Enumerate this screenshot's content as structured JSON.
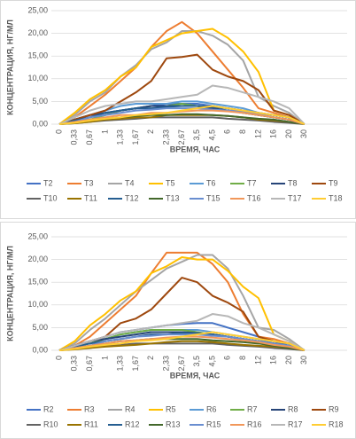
{
  "chart_data": [
    {
      "type": "line",
      "y_label": "КОНЦЕНТРАЦИЯ, НГ/МЛ",
      "x_label": "ВРЕМЯ, ЧАС",
      "categories": [
        "0",
        "0,33",
        "0,67",
        "1",
        "1,33",
        "1,67",
        "2",
        "2,33",
        "2,67",
        "3,5",
        "4,5",
        "6",
        "8",
        "12",
        "16",
        "20",
        "30"
      ],
      "ylim": [
        0,
        25
      ],
      "yticks": [
        {
          "value": 0,
          "label": "0,00"
        },
        {
          "value": 5,
          "label": "5,00"
        },
        {
          "value": 10,
          "label": "10,00"
        },
        {
          "value": 15,
          "label": "15,00"
        },
        {
          "value": 20,
          "label": "20,00"
        },
        {
          "value": 25,
          "label": "25,00"
        }
      ],
      "grid": true,
      "series": [
        {
          "name": "T2",
          "color": "#4472C4",
          "values": [
            0,
            0.5,
            1.5,
            2.5,
            3,
            3.5,
            4,
            4.5,
            4.5,
            4.5,
            4,
            3.5,
            3,
            2,
            1.5,
            1,
            0
          ]
        },
        {
          "name": "T3",
          "color": "#ED7D31",
          "values": [
            0,
            1.5,
            4,
            6.5,
            9.5,
            12.5,
            17,
            20.5,
            22.5,
            20,
            16,
            12,
            8,
            3.5,
            2.5,
            1.5,
            0
          ]
        },
        {
          "name": "T4",
          "color": "#A5A5A5",
          "values": [
            0,
            2,
            5,
            7,
            10.5,
            13,
            16.5,
            18,
            20.5,
            20.5,
            19.5,
            17.5,
            14,
            6,
            4,
            2.5,
            0
          ]
        },
        {
          "name": "T5",
          "color": "#FFC000",
          "values": [
            0,
            2.5,
            5.5,
            7.5,
            10.5,
            12.5,
            17,
            18.5,
            20,
            20.5,
            21,
            19,
            16,
            11.5,
            3,
            2,
            0
          ]
        },
        {
          "name": "T6",
          "color": "#5B9BD5",
          "values": [
            0,
            1,
            2,
            3,
            4,
            4.5,
            4.5,
            4.5,
            5,
            5,
            4.5,
            4,
            3.5,
            2.5,
            2,
            1.5,
            0
          ]
        },
        {
          "name": "T7",
          "color": "#70AD47",
          "values": [
            0,
            0.5,
            1,
            2,
            3,
            3.5,
            4,
            4,
            4.5,
            4,
            3.5,
            3,
            2.5,
            2,
            1.5,
            1,
            0
          ]
        },
        {
          "name": "T8",
          "color": "#264478",
          "values": [
            0,
            1,
            2,
            2.5,
            3,
            3.5,
            4,
            4,
            4,
            4,
            3.5,
            3,
            2.5,
            2,
            1.5,
            1,
            0
          ]
        },
        {
          "name": "T9",
          "color": "#9E480E",
          "values": [
            0,
            1,
            2,
            3,
            5,
            7,
            9.5,
            14.5,
            14.8,
            15.3,
            12,
            10.5,
            9.5,
            7.5,
            3,
            2,
            0
          ]
        },
        {
          "name": "T10",
          "color": "#636363",
          "values": [
            0,
            0.2,
            0.5,
            0.8,
            1,
            1.2,
            1.5,
            1.5,
            1.5,
            1.5,
            1.5,
            1.2,
            1,
            0.8,
            0.5,
            0.3,
            0
          ]
        },
        {
          "name": "T11",
          "color": "#997300",
          "values": [
            0,
            0.2,
            0.5,
            1,
            1.2,
            1.5,
            1.5,
            2,
            2,
            2,
            2,
            1.8,
            1.5,
            1,
            0.8,
            0.5,
            0
          ]
        },
        {
          "name": "T12",
          "color": "#255E91",
          "values": [
            0,
            0.8,
            1.5,
            2.5,
            3,
            3.5,
            3.5,
            3.8,
            4,
            4,
            3.8,
            3.5,
            3,
            2.5,
            2,
            1.5,
            0
          ]
        },
        {
          "name": "T13",
          "color": "#43682B",
          "values": [
            0,
            0.3,
            0.8,
            1.2,
            1.5,
            1.8,
            2,
            2,
            2.2,
            2.2,
            2,
            1.8,
            1.5,
            1.2,
            1,
            0.5,
            0
          ]
        },
        {
          "name": "T15",
          "color": "#698ED0",
          "values": [
            0,
            0.5,
            1.5,
            2,
            2.5,
            3,
            3.2,
            3.5,
            3.5,
            3.5,
            3.2,
            3,
            2.8,
            2.2,
            1.5,
            1,
            0
          ]
        },
        {
          "name": "T16",
          "color": "#F1975A",
          "values": [
            0,
            0.5,
            1,
            1.5,
            2,
            2,
            2.5,
            2.5,
            2.8,
            3,
            3,
            2.8,
            2.5,
            2,
            1.5,
            1,
            0
          ]
        },
        {
          "name": "T17",
          "color": "#B7B7B7",
          "values": [
            0,
            1.5,
            3,
            4,
            4.5,
            5,
            5,
            5.5,
            6,
            6.5,
            8.5,
            8,
            7,
            6,
            5,
            3.5,
            0
          ]
        },
        {
          "name": "T18",
          "color": "#FFCD33",
          "values": [
            0,
            0.3,
            0.8,
            1.2,
            1.5,
            2,
            2.2,
            2.5,
            3,
            3.5,
            4,
            3.5,
            3,
            2.5,
            2,
            1.5,
            0
          ]
        }
      ]
    },
    {
      "type": "line",
      "y_label": "КОНЦЕНТРАЦИЯ, НГ/МЛ",
      "x_label": "ВРЕМЯ, ЧАС",
      "categories": [
        "0",
        "0,33",
        "0,67",
        "1",
        "1,33",
        "1,67",
        "2",
        "2,33",
        "2,67",
        "3,5",
        "4,5",
        "6",
        "8",
        "12",
        "16",
        "20",
        "30"
      ],
      "ylim": [
        0,
        25
      ],
      "yticks": [
        {
          "value": 0,
          "label": "0,00"
        },
        {
          "value": 5,
          "label": "5,00"
        },
        {
          "value": 10,
          "label": "10,00"
        },
        {
          "value": 15,
          "label": "15,00"
        },
        {
          "value": 20,
          "label": "20,00"
        },
        {
          "value": 25,
          "label": "25,00"
        }
      ],
      "grid": true,
      "series": [
        {
          "name": "R2",
          "color": "#4472C4",
          "values": [
            0,
            1,
            2,
            3,
            4,
            4.5,
            5,
            5.5,
            5.8,
            6,
            6,
            5,
            4,
            3,
            2,
            1,
            0
          ]
        },
        {
          "name": "R3",
          "color": "#ED7D31",
          "values": [
            0,
            1,
            3,
            6,
            9,
            12,
            17,
            21.5,
            21.5,
            21.5,
            19,
            15,
            8,
            3,
            2.5,
            1.5,
            0
          ]
        },
        {
          "name": "R4",
          "color": "#A5A5A5",
          "values": [
            0,
            1.5,
            4.5,
            7,
            10,
            13,
            15.5,
            18,
            19.5,
            21,
            21,
            18,
            12,
            5,
            4.5,
            2.5,
            0
          ]
        },
        {
          "name": "R5",
          "color": "#FFC000",
          "values": [
            0,
            2,
            5.5,
            8,
            11,
            13,
            17,
            18.5,
            20.5,
            20,
            20,
            17.5,
            14,
            11.5,
            3.5,
            2,
            0
          ]
        },
        {
          "name": "R6",
          "color": "#5B9BD5",
          "values": [
            0,
            1,
            2,
            2.5,
            3.5,
            4,
            4.5,
            4.5,
            4.5,
            4.5,
            4,
            3.5,
            3,
            2.5,
            1.5,
            1,
            0
          ]
        },
        {
          "name": "R7",
          "color": "#70AD47",
          "values": [
            0,
            0.8,
            1.5,
            2.5,
            3.5,
            4,
            4.5,
            4.5,
            4.5,
            4,
            3.5,
            3,
            2.5,
            2,
            1.5,
            1,
            0
          ]
        },
        {
          "name": "R8",
          "color": "#264478",
          "values": [
            0,
            1,
            2,
            2.5,
            3,
            3.5,
            4,
            4,
            4,
            3.8,
            3.5,
            3,
            2.5,
            2,
            1.5,
            1,
            0
          ]
        },
        {
          "name": "R9",
          "color": "#9E480E",
          "values": [
            0,
            1,
            2,
            3,
            6,
            7,
            9,
            12.5,
            16,
            15,
            12,
            10.5,
            8.5,
            3,
            2,
            1.5,
            0
          ]
        },
        {
          "name": "R10",
          "color": "#636363",
          "values": [
            0,
            0.3,
            0.5,
            1,
            1.2,
            1.5,
            1.5,
            1.5,
            1.5,
            1.5,
            1.5,
            1.2,
            1,
            0.8,
            0.5,
            0.3,
            0
          ]
        },
        {
          "name": "R11",
          "color": "#997300",
          "values": [
            0,
            0.2,
            0.5,
            0.8,
            1,
            1.2,
            1.5,
            1.8,
            2,
            2,
            1.8,
            1.5,
            1.2,
            1,
            0.8,
            0.5,
            0
          ]
        },
        {
          "name": "R12",
          "color": "#255E91",
          "values": [
            0,
            0.8,
            1.5,
            2,
            2.5,
            3,
            3.5,
            3.5,
            3.8,
            3.8,
            3.5,
            3,
            2.5,
            2,
            1.5,
            1,
            0
          ]
        },
        {
          "name": "R13",
          "color": "#43682B",
          "values": [
            0,
            0.5,
            1,
            1.5,
            2,
            2.2,
            2.5,
            2.5,
            2.5,
            2.5,
            2.2,
            2,
            1.8,
            1.5,
            1,
            0.5,
            0
          ]
        },
        {
          "name": "R15",
          "color": "#698ED0",
          "values": [
            0,
            0.5,
            1,
            2,
            2.5,
            3,
            3.2,
            3.5,
            3.5,
            3.5,
            3.2,
            3,
            2.5,
            2,
            1.5,
            1,
            0
          ]
        },
        {
          "name": "R16",
          "color": "#F1975A",
          "values": [
            0,
            0.5,
            1,
            1.5,
            2,
            2.2,
            2.5,
            2.8,
            3,
            3,
            2.8,
            2.5,
            2.2,
            1.8,
            1.2,
            0.8,
            0
          ]
        },
        {
          "name": "R17",
          "color": "#B7B7B7",
          "values": [
            0,
            1,
            2,
            3,
            4,
            4.5,
            5,
            5.5,
            6,
            6.5,
            8,
            7.5,
            6,
            5,
            3.5,
            2,
            0
          ]
        },
        {
          "name": "R18",
          "color": "#FFCD33",
          "values": [
            0,
            0.3,
            0.8,
            1.2,
            1.5,
            2,
            2.2,
            2.5,
            3,
            3.5,
            4,
            3.5,
            3,
            2.5,
            2,
            1.5,
            0
          ]
        }
      ]
    }
  ]
}
